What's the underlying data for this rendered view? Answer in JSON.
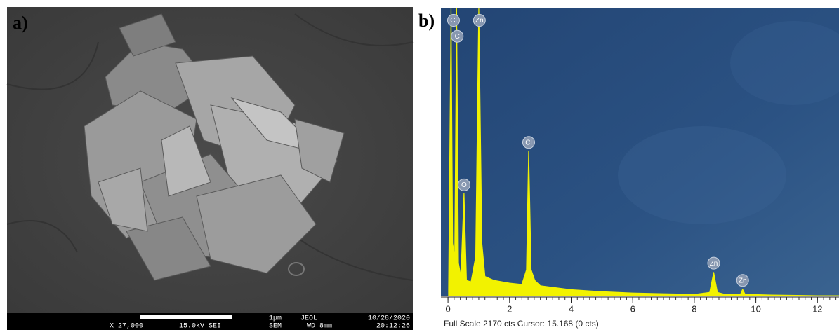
{
  "panel_a": {
    "label": "a)",
    "info": {
      "scale": "1µm",
      "maker": "JEOL",
      "date": "10/28/2020",
      "magnification": "X 27,000",
      "voltage": "15.0kV SEI",
      "mode": "SEM",
      "working_distance": "WD 8mm",
      "time": "20:12:26"
    }
  },
  "chart_data": {
    "type": "area",
    "label": "b)",
    "color": "#f2f200",
    "x": [
      0.02,
      0.1,
      0.15,
      0.22,
      0.28,
      0.34,
      0.42,
      0.52,
      0.6,
      0.75,
      0.9,
      1.0,
      1.1,
      1.2,
      1.5,
      2.0,
      2.4,
      2.55,
      2.62,
      2.7,
      2.82,
      3.0,
      4.0,
      5.0,
      6.0,
      7.0,
      8.0,
      8.5,
      8.63,
      8.75,
      9.0,
      9.5,
      9.57,
      9.65,
      10.5,
      12.0,
      12.7
    ],
    "values": [
      50,
      2170,
      400,
      300,
      2170,
      250,
      150,
      778,
      120,
      110,
      300,
      2170,
      400,
      150,
      120,
      100,
      90,
      200,
      1096,
      200,
      120,
      80,
      50,
      35,
      25,
      20,
      15,
      30,
      180,
      30,
      15,
      15,
      53,
      15,
      10,
      5,
      5
    ],
    "xlim": [
      -0.23,
      12.7
    ],
    "ylim": [
      0,
      2170
    ],
    "xticks": [
      0,
      2,
      4,
      6,
      8,
      10,
      12
    ],
    "annotations": [
      {
        "text": "Cl",
        "x": 0.18,
        "y": 2080
      },
      {
        "text": "C",
        "x": 0.3,
        "y": 1960
      },
      {
        "text": "Zn",
        "x": 1.02,
        "y": 2080
      },
      {
        "text": "Cl",
        "x": 2.62,
        "y": 1160
      },
      {
        "text": "O",
        "x": 0.52,
        "y": 840
      },
      {
        "text": "Zn",
        "x": 8.63,
        "y": 250
      },
      {
        "text": "Zn",
        "x": 9.57,
        "y": 120
      }
    ],
    "status": "Full Scale 2170 cts Cursor: 15.168  (0 cts)"
  }
}
